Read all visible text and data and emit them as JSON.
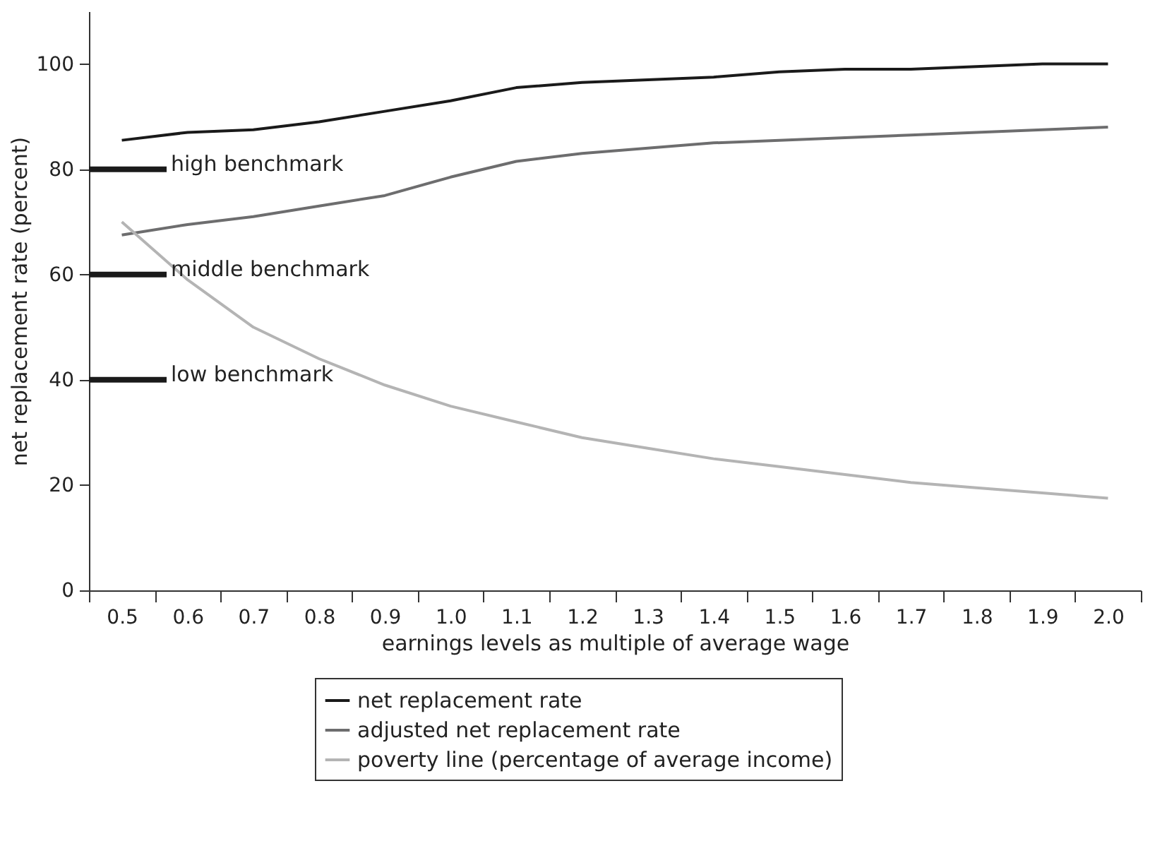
{
  "chart_data": {
    "type": "line",
    "xlabel": "earnings levels as multiple of average wage",
    "ylabel": "net replacement rate (percent)",
    "categories": [
      "0.5",
      "0.6",
      "0.7",
      "0.8",
      "0.9",
      "1.0",
      "1.1",
      "1.2",
      "1.3",
      "1.4",
      "1.5",
      "1.6",
      "1.7",
      "1.8",
      "1.9",
      "2.0"
    ],
    "series": [
      {
        "name": "net replacement rate",
        "color": "#1a1a1a",
        "values": [
          85.5,
          87,
          87.5,
          89,
          91,
          93,
          95.5,
          96.5,
          97,
          97.5,
          98.5,
          99,
          99,
          99.5,
          100,
          100
        ]
      },
      {
        "name": "adjusted net replacement rate",
        "color": "#6d6d6e",
        "values": [
          67.5,
          69.5,
          71,
          73,
          75,
          78.5,
          81.5,
          83,
          84,
          85,
          85.5,
          86,
          86.5,
          87,
          87.5,
          88
        ]
      },
      {
        "name": "poverty line (percentage of average income)",
        "color": "#b4b4b4",
        "values": [
          70,
          59,
          50,
          44,
          39,
          35,
          32,
          29,
          27,
          25,
          23.5,
          22,
          20.5,
          19.5,
          18.5,
          17.5
        ]
      }
    ],
    "ylim": [
      0,
      110
    ],
    "yticks": [
      0,
      20,
      40,
      60,
      80,
      100
    ],
    "ref_lines": [
      {
        "axis": "y",
        "value": 80,
        "label": "high benchmark",
        "color": "#1a1a1a"
      },
      {
        "axis": "y",
        "value": 60,
        "label": "middle benchmark",
        "color": "#1a1a1a"
      },
      {
        "axis": "y",
        "value": 40,
        "label": "low benchmark",
        "color": "#1a1a1a"
      }
    ],
    "legend": "bottom",
    "grid": false,
    "marker": "none",
    "line_style": "solid"
  }
}
